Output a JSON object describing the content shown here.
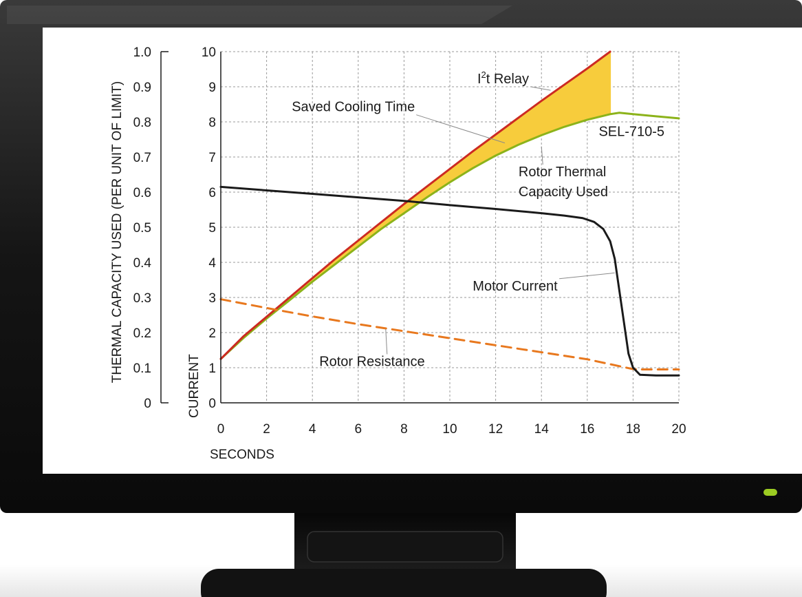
{
  "chart_data": {
    "type": "line",
    "title": "",
    "xlabel": "SECONDS",
    "ylabel": "CURRENT",
    "y2label": "THERMAL CAPACITY USED (PER UNIT OF LIMIT)",
    "xlim": [
      0,
      20
    ],
    "ylim": [
      0,
      10
    ],
    "y2lim": [
      0,
      1.0
    ],
    "grid": true,
    "x_ticks": [
      "0",
      "2",
      "4",
      "6",
      "8",
      "10",
      "12",
      "14",
      "16",
      "18",
      "20"
    ],
    "y_ticks": [
      "0",
      "1",
      "2",
      "3",
      "4",
      "5",
      "6",
      "7",
      "8",
      "9",
      "10"
    ],
    "y2_ticks": [
      "0",
      "0.1",
      "0.2",
      "0.3",
      "0.4",
      "0.5",
      "0.6",
      "0.7",
      "0.8",
      "0.9",
      "1.0"
    ],
    "series": [
      {
        "name": "I²t Relay",
        "color": "#cc2a22",
        "style": "solid",
        "axis": "y2",
        "x": [
          0,
          1,
          2,
          3,
          4,
          5,
          6,
          7,
          8,
          9,
          10,
          11,
          12,
          13,
          14,
          15,
          16,
          17
        ],
        "y": [
          0.125,
          0.19,
          0.245,
          0.3,
          0.355,
          0.41,
          0.462,
          0.514,
          0.566,
          0.616,
          0.666,
          0.716,
          0.764,
          0.812,
          0.86,
          0.906,
          0.952,
          1.0
        ]
      },
      {
        "name": "Rotor Thermal Capacity Used",
        "color": "#8cb31a",
        "style": "solid",
        "axis": "y2",
        "x": [
          0,
          1,
          2,
          3,
          4,
          5,
          6,
          7,
          8,
          9,
          10,
          11,
          12,
          13,
          14,
          15,
          16,
          17,
          17.4,
          18,
          19,
          20
        ],
        "y": [
          0.125,
          0.185,
          0.24,
          0.292,
          0.345,
          0.395,
          0.445,
          0.495,
          0.54,
          0.585,
          0.628,
          0.668,
          0.704,
          0.735,
          0.762,
          0.786,
          0.806,
          0.822,
          0.826,
          0.822,
          0.816,
          0.81
        ]
      },
      {
        "name": "Motor Current",
        "color": "#1a1a1a",
        "style": "solid",
        "axis": "y",
        "x": [
          0,
          2,
          4,
          6,
          8,
          10,
          12,
          14,
          15,
          15.8,
          16.3,
          16.7,
          17,
          17.2,
          17.4,
          17.6,
          17.8,
          18,
          18.3,
          19,
          20
        ],
        "y": [
          6.15,
          6.05,
          5.95,
          5.85,
          5.75,
          5.63,
          5.52,
          5.4,
          5.33,
          5.26,
          5.15,
          4.95,
          4.6,
          4.1,
          3.2,
          2.3,
          1.4,
          1.0,
          0.8,
          0.78,
          0.78
        ]
      },
      {
        "name": "Rotor Resistance",
        "color": "#e8781e",
        "style": "dashed",
        "axis": "y",
        "x": [
          0,
          2,
          4,
          6,
          8,
          10,
          12,
          14,
          16,
          18,
          18.3,
          20
        ],
        "y": [
          2.95,
          2.7,
          2.46,
          2.24,
          2.04,
          1.84,
          1.64,
          1.44,
          1.24,
          0.96,
          0.95,
          0.95
        ]
      }
    ],
    "shaded_region": {
      "name": "Saved Cooling Time",
      "color": "#f7cc3c",
      "between": [
        "I²t Relay",
        "Rotor Thermal Capacity Used"
      ],
      "x_range": [
        0,
        17
      ]
    },
    "annotations": [
      {
        "key": "relay",
        "sup": true,
        "prefix": "I",
        "superscript": "2",
        "text": "t Relay",
        "x": 11.2,
        "y": 9.1,
        "tx": 14.4,
        "ty": 8.9
      },
      {
        "key": "saved",
        "text": "Saved Cooling Time",
        "x": 3.1,
        "y": 8.3,
        "tx": 12.4,
        "ty": 7.4
      },
      {
        "key": "sel",
        "text": "SEL-710-5",
        "x": 16.5,
        "y": 7.6
      },
      {
        "key": "rotor1",
        "text": "Rotor Thermal",
        "x": 13.0,
        "y": 6.45,
        "tx": 14.0,
        "ty": 7.3
      },
      {
        "key": "rotor2",
        "text": "Capacity Used",
        "x": 13.0,
        "y": 5.88
      },
      {
        "key": "motor",
        "text": "Motor Current",
        "x": 11.0,
        "y": 3.2,
        "tx": 17.2,
        "ty": 3.7
      },
      {
        "key": "resist",
        "text": "Rotor Resistance",
        "x": 4.3,
        "y": 1.05,
        "tx": 7.2,
        "ty": 2.1
      }
    ]
  }
}
